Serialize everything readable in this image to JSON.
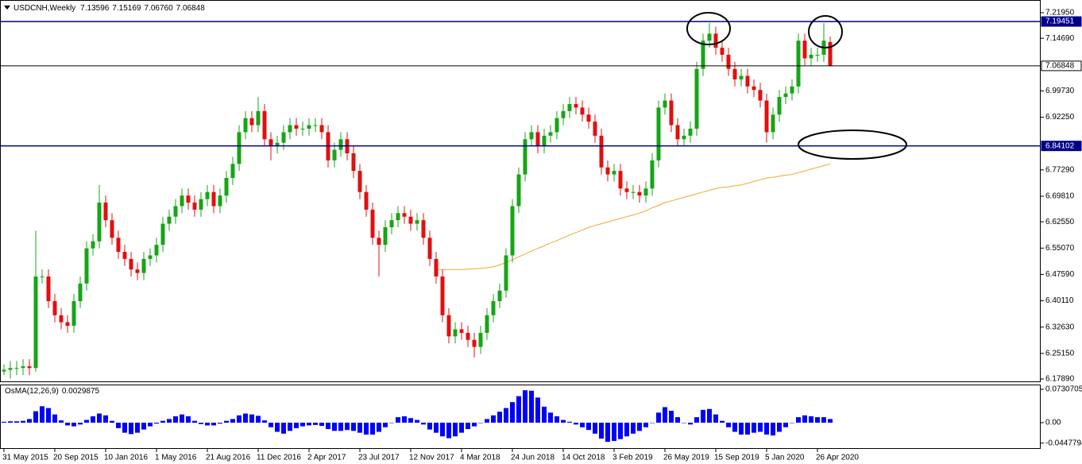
{
  "chart_data": [
    {
      "type": "candlestick",
      "symbol": "USDCNH,Weekly",
      "ohlc_label": [
        "7.13596",
        "7.15169",
        "7.06760",
        "7.06848"
      ],
      "up_color": "#16a516",
      "down_color": "#e01010",
      "xlim": [
        -0.625,
        163.125
      ],
      "ylim": [
        6.1721,
        7.2556
      ],
      "yticks": [
        {
          "value": 7.2195,
          "label": "7.21950"
        },
        {
          "value": 7.1469,
          "label": "7.14690"
        },
        {
          "value": 6.9973,
          "label": "6.99730"
        },
        {
          "value": 6.9225,
          "label": "6.92250"
        },
        {
          "value": 6.7729,
          "label": "6.77290"
        },
        {
          "value": 6.6981,
          "label": "6.69810"
        },
        {
          "value": 6.6255,
          "label": "6.62550"
        },
        {
          "value": 6.5507,
          "label": "6.55070"
        },
        {
          "value": 6.4759,
          "label": "6.47590"
        },
        {
          "value": 6.4011,
          "label": "6.40110"
        },
        {
          "value": 6.3263,
          "label": "6.32630"
        },
        {
          "value": 6.2515,
          "label": "6.25150"
        },
        {
          "value": 6.1789,
          "label": "6.17890"
        }
      ],
      "levels": [
        {
          "value": 7.19451,
          "color": "#00008b"
        },
        {
          "value": 7.06848,
          "color": "#000000"
        },
        {
          "value": 6.84102,
          "color": "#00008b"
        }
      ],
      "open": [
        6.2,
        6.205,
        6.21,
        6.21,
        6.215,
        6.21,
        6.47,
        6.47,
        6.4,
        6.36,
        6.34,
        6.33,
        6.4,
        6.45,
        6.55,
        6.57,
        6.68,
        6.63,
        6.58,
        6.54,
        6.52,
        6.49,
        6.48,
        6.52,
        6.53,
        6.56,
        6.62,
        6.64,
        6.67,
        6.7,
        6.68,
        6.66,
        6.69,
        6.71,
        6.67,
        6.7,
        6.75,
        6.79,
        6.88,
        6.92,
        6.9,
        6.94,
        6.86,
        6.84,
        6.85,
        6.88,
        6.9,
        6.89,
        6.89,
        6.9,
        6.9,
        6.88,
        6.8,
        6.83,
        6.86,
        6.82,
        6.77,
        6.71,
        6.66,
        6.58,
        6.56,
        6.61,
        6.63,
        6.65,
        6.64,
        6.62,
        6.63,
        6.58,
        6.52,
        6.47,
        6.36,
        6.3,
        6.32,
        6.31,
        6.29,
        6.27,
        6.31,
        6.36,
        6.4,
        6.43,
        6.53,
        6.67,
        6.76,
        6.86,
        6.88,
        6.84,
        6.87,
        6.88,
        6.92,
        6.94,
        6.96,
        6.95,
        6.93,
        6.91,
        6.87,
        6.78,
        6.76,
        6.77,
        6.72,
        6.71,
        6.71,
        6.7,
        6.72,
        6.8,
        6.95,
        6.97,
        6.9,
        6.86,
        6.87,
        6.89,
        7.06,
        7.14,
        7.16,
        7.12,
        7.1,
        7.06,
        7.03,
        7.04,
        7.01,
        7.0,
        6.97,
        6.88,
        6.93,
        6.98,
        6.99,
        7.01,
        7.14,
        7.09,
        7.1,
        7.1,
        7.13596
      ],
      "high": [
        6.22,
        6.23,
        6.23,
        6.235,
        6.235,
        6.6,
        6.49,
        6.49,
        6.42,
        6.38,
        6.36,
        6.42,
        6.47,
        6.57,
        6.59,
        6.73,
        6.7,
        6.65,
        6.6,
        6.56,
        6.54,
        6.51,
        6.54,
        6.55,
        6.58,
        6.64,
        6.66,
        6.69,
        6.72,
        6.72,
        6.7,
        6.71,
        6.73,
        6.73,
        6.72,
        6.77,
        6.81,
        6.9,
        6.94,
        6.94,
        6.98,
        6.96,
        6.88,
        6.87,
        6.9,
        6.92,
        6.92,
        6.91,
        6.92,
        6.92,
        6.92,
        6.9,
        6.85,
        6.88,
        6.88,
        6.84,
        6.79,
        6.73,
        6.68,
        6.6,
        6.63,
        6.65,
        6.67,
        6.67,
        6.66,
        6.65,
        6.65,
        6.6,
        6.54,
        6.49,
        6.38,
        6.34,
        6.34,
        6.33,
        6.31,
        6.33,
        6.38,
        6.42,
        6.45,
        6.55,
        6.69,
        6.78,
        6.88,
        6.9,
        6.9,
        6.89,
        6.9,
        6.94,
        6.96,
        6.98,
        6.98,
        6.97,
        6.95,
        6.93,
        6.89,
        6.8,
        6.79,
        6.79,
        6.74,
        6.73,
        6.73,
        6.74,
        6.82,
        6.97,
        6.99,
        6.99,
        6.92,
        6.89,
        6.91,
        7.08,
        7.16,
        7.19,
        7.18,
        7.14,
        7.12,
        7.08,
        7.06,
        7.06,
        7.03,
        7.02,
        6.99,
        6.95,
        7.0,
        7.01,
        7.03,
        7.16,
        7.16,
        7.12,
        7.12,
        7.19,
        7.15169
      ],
      "low": [
        6.19,
        6.18,
        6.19,
        6.19,
        6.19,
        6.2,
        6.45,
        6.38,
        6.34,
        6.32,
        6.31,
        6.31,
        6.38,
        6.43,
        6.53,
        6.55,
        6.61,
        6.56,
        6.52,
        6.5,
        6.47,
        6.46,
        6.46,
        6.5,
        6.51,
        6.54,
        6.6,
        6.62,
        6.65,
        6.66,
        6.64,
        6.64,
        6.67,
        6.65,
        6.65,
        6.68,
        6.73,
        6.77,
        6.86,
        6.88,
        6.88,
        6.84,
        6.8,
        6.82,
        6.83,
        6.86,
        6.87,
        6.87,
        6.87,
        6.88,
        6.86,
        6.78,
        6.78,
        6.81,
        6.8,
        6.75,
        6.69,
        6.64,
        6.56,
        6.47,
        6.54,
        6.59,
        6.61,
        6.62,
        6.6,
        6.6,
        6.56,
        6.5,
        6.45,
        6.34,
        6.28,
        6.28,
        6.29,
        6.27,
        6.24,
        6.25,
        6.29,
        6.34,
        6.38,
        6.41,
        6.51,
        6.65,
        6.74,
        6.84,
        6.82,
        6.82,
        6.85,
        6.86,
        6.9,
        6.92,
        6.93,
        6.91,
        6.89,
        6.85,
        6.76,
        6.74,
        6.74,
        6.7,
        6.69,
        6.69,
        6.68,
        6.68,
        6.7,
        6.78,
        6.93,
        6.88,
        6.84,
        6.84,
        6.85,
        6.87,
        7.04,
        7.12,
        7.1,
        7.08,
        7.04,
        7.01,
        7.01,
        6.99,
        6.98,
        6.95,
        6.85,
        6.86,
        6.91,
        6.96,
        6.97,
        6.99,
        7.07,
        7.07,
        7.08,
        7.08,
        7.0676
      ],
      "close": [
        6.205,
        6.21,
        6.21,
        6.215,
        6.21,
        6.47,
        6.47,
        6.4,
        6.36,
        6.34,
        6.33,
        6.4,
        6.45,
        6.55,
        6.57,
        6.68,
        6.63,
        6.58,
        6.54,
        6.52,
        6.49,
        6.48,
        6.52,
        6.53,
        6.56,
        6.62,
        6.64,
        6.67,
        6.7,
        6.68,
        6.66,
        6.69,
        6.71,
        6.67,
        6.7,
        6.75,
        6.79,
        6.88,
        6.92,
        6.9,
        6.94,
        6.86,
        6.84,
        6.85,
        6.88,
        6.9,
        6.89,
        6.89,
        6.9,
        6.9,
        6.88,
        6.8,
        6.83,
        6.86,
        6.82,
        6.77,
        6.71,
        6.66,
        6.58,
        6.56,
        6.61,
        6.63,
        6.65,
        6.64,
        6.62,
        6.63,
        6.58,
        6.52,
        6.47,
        6.36,
        6.3,
        6.32,
        6.31,
        6.29,
        6.27,
        6.31,
        6.36,
        6.4,
        6.43,
        6.53,
        6.67,
        6.76,
        6.86,
        6.88,
        6.84,
        6.87,
        6.88,
        6.92,
        6.94,
        6.96,
        6.95,
        6.93,
        6.91,
        6.87,
        6.78,
        6.76,
        6.77,
        6.72,
        6.71,
        6.71,
        6.7,
        6.72,
        6.8,
        6.95,
        6.97,
        6.9,
        6.86,
        6.87,
        6.89,
        7.06,
        7.14,
        7.16,
        7.12,
        7.1,
        7.06,
        7.03,
        7.04,
        7.01,
        7.0,
        6.97,
        6.88,
        6.93,
        6.98,
        6.99,
        7.01,
        7.14,
        7.09,
        7.1,
        7.1,
        7.14,
        7.06848
      ],
      "moving_average": {
        "color": "#f0a830",
        "values": [
          null,
          null,
          null,
          null,
          null,
          null,
          null,
          null,
          null,
          null,
          null,
          null,
          null,
          null,
          null,
          null,
          null,
          null,
          null,
          null,
          null,
          null,
          null,
          null,
          null,
          null,
          null,
          null,
          null,
          null,
          null,
          null,
          null,
          null,
          null,
          null,
          null,
          null,
          null,
          null,
          null,
          null,
          null,
          null,
          null,
          null,
          null,
          null,
          null,
          null,
          null,
          null,
          null,
          null,
          null,
          null,
          null,
          null,
          null,
          null,
          null,
          null,
          null,
          null,
          null,
          null,
          null,
          null,
          6.49,
          6.49,
          6.49,
          6.49,
          6.49,
          6.491,
          6.492,
          6.493,
          6.495,
          6.498,
          6.503,
          6.51,
          6.518,
          6.526,
          6.534,
          6.542,
          6.55,
          6.557,
          6.565,
          6.572,
          6.58,
          6.588,
          6.595,
          6.602,
          6.61,
          6.615,
          6.62,
          6.625,
          6.63,
          6.635,
          6.64,
          6.645,
          6.65,
          6.657,
          6.665,
          6.672,
          6.68,
          6.685,
          6.69,
          6.695,
          6.7,
          6.705,
          6.71,
          6.715,
          6.72,
          6.723,
          6.725,
          6.728,
          6.73,
          6.735,
          6.74,
          6.745,
          6.75,
          6.752,
          6.755,
          6.758,
          6.76,
          6.765,
          6.77,
          6.775,
          6.78,
          6.785,
          6.79
        ]
      }
    },
    {
      "type": "bar",
      "title": "OsMA(12,26,9)",
      "last_value": 0.0029875,
      "color": "#0000ff",
      "xlim": [
        -0.625,
        163.125
      ],
      "ylim": [
        -0.0557,
        0.08
      ],
      "yticks": [
        0.0730705,
        {
          "value": 0,
          "label": "0.00"
        },
        -0.0447794
      ],
      "xticks": [
        {
          "value": 0,
          "label": "31 May 2015"
        },
        {
          "value": 8,
          "label": "20 Sep 2015"
        },
        {
          "value": 16,
          "label": "10 Jan 2016"
        },
        {
          "value": 24,
          "label": "1 May 2016"
        },
        {
          "value": 32,
          "label": "21 Aug 2016"
        },
        {
          "value": 40,
          "label": "11 Dec 2016"
        },
        {
          "value": 48,
          "label": "2 Apr 2017"
        },
        {
          "value": 56,
          "label": "23 Jul 2017"
        },
        {
          "value": 64,
          "label": "12 Nov 2017"
        },
        {
          "value": 72,
          "label": "4 Mar 2018"
        },
        {
          "value": 80,
          "label": "24 Jun 2018"
        },
        {
          "value": 88,
          "label": "14 Oct 2018"
        },
        {
          "value": 96,
          "label": "3 Feb 2019"
        },
        {
          "value": 104,
          "label": "26 May 2019"
        },
        {
          "value": 112,
          "label": "15 Sep 2019"
        },
        {
          "value": 120,
          "label": "5 Jan 2020"
        },
        {
          "value": 128,
          "label": "26 Apr 2020"
        }
      ],
      "values": [
        0.002,
        0.003,
        0.003,
        0.004,
        0.008,
        0.025,
        0.036,
        0.032,
        0.018,
        0.005,
        -0.006,
        -0.008,
        -0.004,
        0.006,
        0.014,
        0.02,
        0.016,
        0.004,
        -0.012,
        -0.022,
        -0.025,
        -0.022,
        -0.015,
        -0.008,
        -0.002,
        0.004,
        0.008,
        0.014,
        0.018,
        0.014,
        0.004,
        -0.003,
        -0.006,
        -0.006,
        -0.002,
        0.004,
        0.008,
        0.016,
        0.02,
        0.018,
        0.015,
        0.005,
        -0.01,
        -0.02,
        -0.024,
        -0.018,
        -0.012,
        -0.008,
        -0.006,
        -0.005,
        -0.007,
        -0.014,
        -0.018,
        -0.018,
        -0.016,
        -0.018,
        -0.022,
        -0.026,
        -0.026,
        -0.02,
        -0.01,
        0.0,
        0.012,
        0.014,
        0.01,
        0.006,
        -0.004,
        -0.015,
        -0.022,
        -0.03,
        -0.034,
        -0.03,
        -0.022,
        -0.014,
        -0.008,
        0.0,
        0.008,
        0.016,
        0.024,
        0.032,
        0.045,
        0.058,
        0.071,
        0.07,
        0.055,
        0.035,
        0.022,
        0.014,
        0.006,
        0.002,
        -0.004,
        -0.01,
        -0.016,
        -0.024,
        -0.035,
        -0.042,
        -0.04,
        -0.036,
        -0.03,
        -0.024,
        -0.018,
        -0.01,
        0.0,
        0.022,
        0.034,
        0.026,
        0.012,
        0.0,
        -0.004,
        0.012,
        0.028,
        0.03,
        0.018,
        0.004,
        -0.01,
        -0.02,
        -0.026,
        -0.026,
        -0.022,
        -0.02,
        -0.026,
        -0.028,
        -0.02,
        -0.01,
        0.0,
        0.012,
        0.016,
        0.014,
        0.012,
        0.012,
        0.008
      ]
    }
  ]
}
